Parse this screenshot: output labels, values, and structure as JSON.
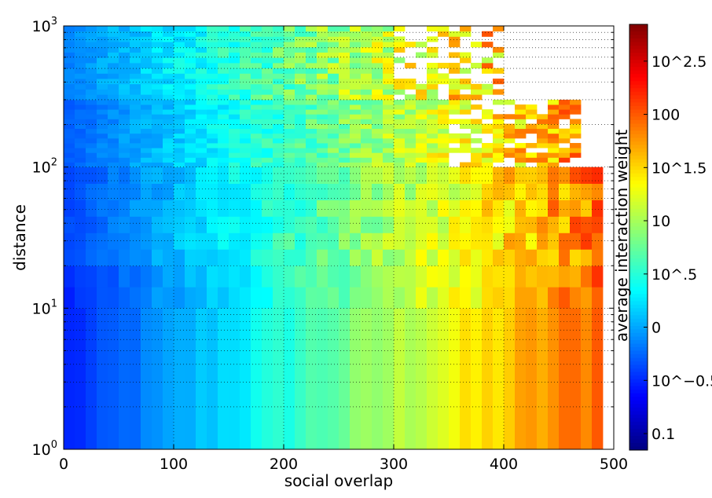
{
  "chart_data": {
    "type": "heatmap",
    "title": "",
    "xlabel": "social overlap",
    "ylabel": "distance",
    "colorbar_label": "average interaction weight",
    "x_scale": "linear",
    "y_scale": "log",
    "xlim": [
      0,
      500
    ],
    "ylim": [
      1,
      1000
    ],
    "x_ticks": [
      {
        "value": 0,
        "label": "0"
      },
      {
        "value": 100,
        "label": "100"
      },
      {
        "value": 200,
        "label": "200"
      },
      {
        "value": 300,
        "label": "300"
      },
      {
        "value": 400,
        "label": "400"
      },
      {
        "value": 500,
        "label": "500"
      }
    ],
    "y_ticks": [
      {
        "value": 1,
        "base": "10",
        "exp": "0"
      },
      {
        "value": 10,
        "base": "10",
        "exp": "1"
      },
      {
        "value": 100,
        "base": "10",
        "exp": "2"
      },
      {
        "value": 1000,
        "base": "10",
        "exp": "3"
      }
    ],
    "color_scale": "log",
    "color_range": [
      0.07,
      700
    ],
    "colormap": "jet",
    "colorbar_ticks": [
      {
        "value": 0.1,
        "label": "0.1"
      },
      {
        "value": 0.316,
        "label": "10^−0.5"
      },
      {
        "value": 1,
        "label": "0"
      },
      {
        "value": 3.16,
        "label": "10^.5"
      },
      {
        "value": 10,
        "label": "10"
      },
      {
        "value": 31.6,
        "label": "10^1.5"
      },
      {
        "value": 100,
        "label": "100"
      },
      {
        "value": 316,
        "label": "10^2.5"
      }
    ],
    "grid": true,
    "trend": "average interaction weight increases with social overlap (about 0.3 at overlap 0 to about 100 near overlap 490); at small overlap it increases with distance; large distances are sparsely populated at high overlap",
    "row_bands": [
      {
        "y_min": 1,
        "y_max": 10,
        "overlap_max": 490,
        "weight_at_0": 0.28,
        "weight_at_max": 100
      },
      {
        "y_min": 10,
        "y_max": 20,
        "overlap_max": 490,
        "weight_at_0": 0.3,
        "weight_at_max": 90
      },
      {
        "y_min": 20,
        "y_max": 100,
        "overlap_max": 490,
        "weight_at_0": 0.4,
        "weight_at_max": 80
      },
      {
        "y_min": 100,
        "y_max": 300,
        "overlap_max": 470,
        "weight_at_0": 0.5,
        "weight_at_max": 60
      },
      {
        "y_min": 300,
        "y_max": 1000,
        "overlap_max": 400,
        "weight_at_0": 0.7,
        "weight_at_max": 40
      }
    ]
  }
}
